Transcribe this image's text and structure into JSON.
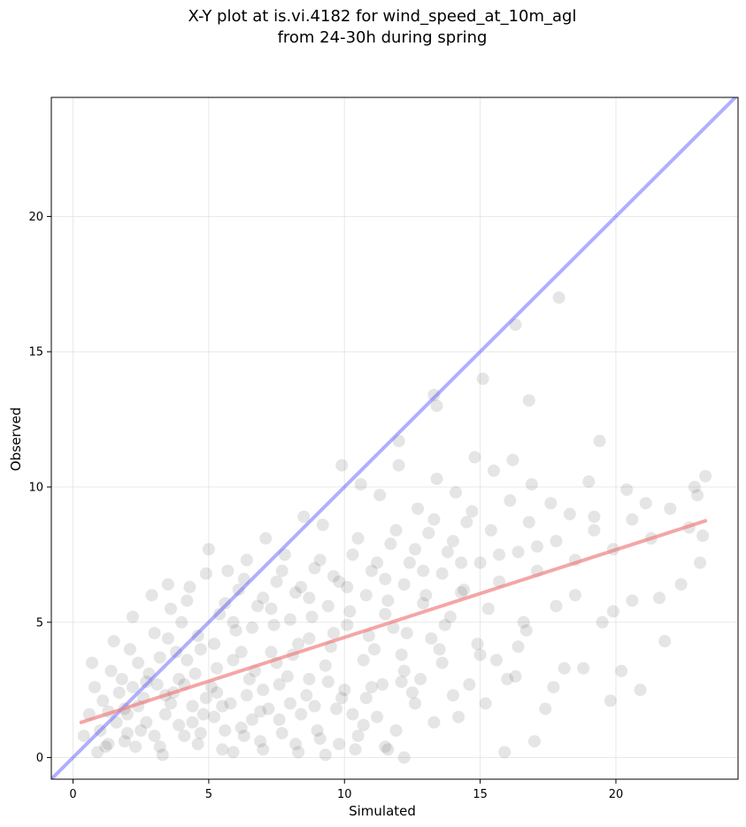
{
  "chart_data": {
    "type": "scatter",
    "title_line1": "X-Y plot at is.vi.4182 for wind_speed_at_10m_agl",
    "title_line2": "from 24-30h during spring",
    "xlabel": "Simulated",
    "ylabel": "Observed",
    "xlim": [
      -0.8,
      24.5
    ],
    "ylim": [
      -0.8,
      24.4
    ],
    "xticks": [
      0,
      5,
      10,
      15,
      20
    ],
    "yticks": [
      0,
      5,
      10,
      15,
      20
    ],
    "grid": true,
    "point_color": "#333333",
    "identity_line": {
      "color": "#4d4dff",
      "x": [
        -0.8,
        24.5
      ],
      "y": [
        -0.8,
        24.5
      ]
    },
    "fit_line": {
      "color": "#f08080",
      "x": [
        0.3,
        23.3
      ],
      "y": [
        1.3,
        8.75
      ]
    },
    "points": [
      [
        17.9,
        17.0
      ],
      [
        16.3,
        16.0
      ],
      [
        13.3,
        13.4
      ],
      [
        13.4,
        13.0
      ],
      [
        15.1,
        14.0
      ],
      [
        16.8,
        13.2
      ],
      [
        12.0,
        11.7
      ],
      [
        19.4,
        11.7
      ],
      [
        0.9,
        0.2
      ],
      [
        1.3,
        0.5
      ],
      [
        2.0,
        0.9
      ],
      [
        2.7,
        1.3
      ],
      [
        3.2,
        0.4
      ],
      [
        4.1,
        0.8
      ],
      [
        4.8,
        1.6
      ],
      [
        5.5,
        0.3
      ],
      [
        6.2,
        1.1
      ],
      [
        6.9,
        0.6
      ],
      [
        7.6,
        1.4
      ],
      [
        8.3,
        0.2
      ],
      [
        9.0,
        1.0
      ],
      [
        9.8,
        0.5
      ],
      [
        10.7,
        1.2
      ],
      [
        11.6,
        0.3
      ],
      [
        12.2,
        0.0
      ],
      [
        1.1,
        2.1
      ],
      [
        1.8,
        2.9
      ],
      [
        2.4,
        3.5
      ],
      [
        3.1,
        2.7
      ],
      [
        3.8,
        3.9
      ],
      [
        4.5,
        3.1
      ],
      [
        5.2,
        4.2
      ],
      [
        5.9,
        3.6
      ],
      [
        6.6,
        4.8
      ],
      [
        7.3,
        3.9
      ],
      [
        8.0,
        5.1
      ],
      [
        8.7,
        4.4
      ],
      [
        9.4,
        5.6
      ],
      [
        10.1,
        4.9
      ],
      [
        10.8,
        6.0
      ],
      [
        11.5,
        5.3
      ],
      [
        12.2,
        6.4
      ],
      [
        12.9,
        5.7
      ],
      [
        13.6,
        6.8
      ],
      [
        14.3,
        6.1
      ],
      [
        15.0,
        7.2
      ],
      [
        15.7,
        6.5
      ],
      [
        16.4,
        7.6
      ],
      [
        17.1,
        6.9
      ],
      [
        17.8,
        8.0
      ],
      [
        18.5,
        7.3
      ],
      [
        19.2,
        8.4
      ],
      [
        19.9,
        7.7
      ],
      [
        20.6,
        8.8
      ],
      [
        21.3,
        8.1
      ],
      [
        22.0,
        9.2
      ],
      [
        22.7,
        8.5
      ],
      [
        23.3,
        10.4
      ],
      [
        1.5,
        4.3
      ],
      [
        2.2,
        5.2
      ],
      [
        2.9,
        6.0
      ],
      [
        3.6,
        5.5
      ],
      [
        4.3,
        6.3
      ],
      [
        5.0,
        7.7
      ],
      [
        5.7,
        6.9
      ],
      [
        6.4,
        7.3
      ],
      [
        7.1,
        8.1
      ],
      [
        7.8,
        7.5
      ],
      [
        8.5,
        8.9
      ],
      [
        9.2,
        8.6
      ],
      [
        9.9,
        10.8
      ],
      [
        10.6,
        10.1
      ],
      [
        11.3,
        9.7
      ],
      [
        12.0,
        10.8
      ],
      [
        12.7,
        9.2
      ],
      [
        13.4,
        10.3
      ],
      [
        14.1,
        9.8
      ],
      [
        14.8,
        11.1
      ],
      [
        15.5,
        10.6
      ],
      [
        16.2,
        11.0
      ],
      [
        16.9,
        10.1
      ],
      [
        17.6,
        9.4
      ],
      [
        18.3,
        9.0
      ],
      [
        19.0,
        10.2
      ],
      [
        20.4,
        9.9
      ],
      [
        21.1,
        9.4
      ],
      [
        22.9,
        10.0
      ],
      [
        23.0,
        9.7
      ],
      [
        0.6,
        1.6
      ],
      [
        1.0,
        1.0
      ],
      [
        1.4,
        3.2
      ],
      [
        1.9,
        1.8
      ],
      [
        2.3,
        0.4
      ],
      [
        2.6,
        2.2
      ],
      [
        3.0,
        4.6
      ],
      [
        3.4,
        1.6
      ],
      [
        3.7,
        2.4
      ],
      [
        4.0,
        5.0
      ],
      [
        4.4,
        1.9
      ],
      [
        4.7,
        4.0
      ],
      [
        5.1,
        2.6
      ],
      [
        5.4,
        5.3
      ],
      [
        5.8,
        2.0
      ],
      [
        6.1,
        6.2
      ],
      [
        6.5,
        2.9
      ],
      [
        6.8,
        5.6
      ],
      [
        7.2,
        1.8
      ],
      [
        7.5,
        6.5
      ],
      [
        7.9,
        3.0
      ],
      [
        8.2,
        6.1
      ],
      [
        8.6,
        2.3
      ],
      [
        8.9,
        7.0
      ],
      [
        9.3,
        3.4
      ],
      [
        9.6,
        6.7
      ],
      [
        10.0,
        2.5
      ],
      [
        10.3,
        7.5
      ],
      [
        10.7,
        3.6
      ],
      [
        11.0,
        6.9
      ],
      [
        11.4,
        2.7
      ],
      [
        11.7,
        7.9
      ],
      [
        12.1,
        3.8
      ],
      [
        12.4,
        7.2
      ],
      [
        12.8,
        2.9
      ],
      [
        13.1,
        8.3
      ],
      [
        13.5,
        4.0
      ],
      [
        13.8,
        7.6
      ],
      [
        14.2,
        1.5
      ],
      [
        14.5,
        8.7
      ],
      [
        14.9,
        4.2
      ],
      [
        15.2,
        2.0
      ],
      [
        15.6,
        3.6
      ],
      [
        15.9,
        0.2
      ],
      [
        16.3,
        3.0
      ],
      [
        16.6,
        5.0
      ],
      [
        17.0,
        0.6
      ],
      [
        17.4,
        1.8
      ],
      [
        17.7,
        2.6
      ],
      [
        18.1,
        3.3
      ],
      [
        18.8,
        3.3
      ],
      [
        19.5,
        5.0
      ],
      [
        19.8,
        2.1
      ],
      [
        20.2,
        3.2
      ],
      [
        20.9,
        2.5
      ],
      [
        21.6,
        5.9
      ],
      [
        21.8,
        4.3
      ],
      [
        22.4,
        6.4
      ],
      [
        23.1,
        7.2
      ],
      [
        23.2,
        8.2
      ],
      [
        0.4,
        0.8
      ],
      [
        0.8,
        2.6
      ],
      [
        1.2,
        0.4
      ],
      [
        1.6,
        1.3
      ],
      [
        2.1,
        4.0
      ],
      [
        2.5,
        1.0
      ],
      [
        2.8,
        3.1
      ],
      [
        3.3,
        0.1
      ],
      [
        3.5,
        4.4
      ],
      [
        3.9,
        1.2
      ],
      [
        4.2,
        3.6
      ],
      [
        4.6,
        0.5
      ],
      [
        4.9,
        2.2
      ],
      [
        5.3,
        3.3
      ],
      [
        5.6,
        1.0
      ],
      [
        6.0,
        4.7
      ],
      [
        6.3,
        0.8
      ],
      [
        6.7,
        3.2
      ],
      [
        7.0,
        2.5
      ],
      [
        7.4,
        4.9
      ],
      [
        7.7,
        0.9
      ],
      [
        8.1,
        3.8
      ],
      [
        8.4,
        1.6
      ],
      [
        8.8,
        5.2
      ],
      [
        9.1,
        0.7
      ],
      [
        9.5,
        4.1
      ],
      [
        9.7,
        1.8
      ],
      [
        10.2,
        5.4
      ],
      [
        10.5,
        0.8
      ],
      [
        10.9,
        4.5
      ],
      [
        11.2,
        1.5
      ],
      [
        11.6,
        5.8
      ],
      [
        11.9,
        1.0
      ],
      [
        12.3,
        4.6
      ],
      [
        12.6,
        2.0
      ],
      [
        13.0,
        6.0
      ],
      [
        13.3,
        1.3
      ],
      [
        13.7,
        4.9
      ],
      [
        14.0,
        2.3
      ],
      [
        14.4,
        6.2
      ],
      [
        0.7,
        3.5
      ],
      [
        1.7,
        2.4
      ],
      [
        2.0,
        1.6
      ],
      [
        2.7,
        2.8
      ],
      [
        3.2,
        3.7
      ],
      [
        3.9,
        2.9
      ],
      [
        4.6,
        4.5
      ],
      [
        5.2,
        1.5
      ],
      [
        5.9,
        5.0
      ],
      [
        6.6,
        1.4
      ],
      [
        7.3,
        5.5
      ],
      [
        8.0,
        2.0
      ],
      [
        8.7,
        5.9
      ],
      [
        9.4,
        2.8
      ],
      [
        10.1,
        6.3
      ],
      [
        10.8,
        2.2
      ],
      [
        11.5,
        6.6
      ],
      [
        12.2,
        3.2
      ],
      [
        12.9,
        6.9
      ],
      [
        13.6,
        3.5
      ],
      [
        14.3,
        7.2
      ],
      [
        15.0,
        3.8
      ],
      [
        15.7,
        7.5
      ],
      [
        16.4,
        4.1
      ],
      [
        17.1,
        7.8
      ],
      [
        17.8,
        5.6
      ],
      [
        18.5,
        6.0
      ],
      [
        19.2,
        8.9
      ],
      [
        19.9,
        5.4
      ],
      [
        20.6,
        5.8
      ],
      [
        1.3,
        1.7
      ],
      [
        1.9,
        0.6
      ],
      [
        2.4,
        1.9
      ],
      [
        3.0,
        0.8
      ],
      [
        3.6,
        2.0
      ],
      [
        4.1,
        2.7
      ],
      [
        4.7,
        0.9
      ],
      [
        5.3,
        2.4
      ],
      [
        5.9,
        0.2
      ],
      [
        6.4,
        2.3
      ],
      [
        7.0,
        0.3
      ],
      [
        7.6,
        2.7
      ],
      [
        8.2,
        0.5
      ],
      [
        8.7,
        2.9
      ],
      [
        9.3,
        0.1
      ],
      [
        9.9,
        2.2
      ],
      [
        10.4,
        0.3
      ],
      [
        11.0,
        2.6
      ],
      [
        11.5,
        0.4
      ],
      [
        12.1,
        2.8
      ],
      [
        2.2,
        2.6
      ],
      [
        3.4,
        2.3
      ],
      [
        4.4,
        1.3
      ],
      [
        5.5,
        1.9
      ],
      [
        6.2,
        3.9
      ],
      [
        6.9,
        1.7
      ],
      [
        7.5,
        3.5
      ],
      [
        8.3,
        4.2
      ],
      [
        8.9,
        1.9
      ],
      [
        9.6,
        4.6
      ],
      [
        10.3,
        1.6
      ],
      [
        11.1,
        4.0
      ],
      [
        11.8,
        4.8
      ],
      [
        12.5,
        2.4
      ],
      [
        13.2,
        4.4
      ],
      [
        13.9,
        5.2
      ],
      [
        14.6,
        2.7
      ],
      [
        15.3,
        5.5
      ],
      [
        16.0,
        2.9
      ],
      [
        16.7,
        4.7
      ],
      [
        3.5,
        6.4
      ],
      [
        4.2,
        5.8
      ],
      [
        4.9,
        6.8
      ],
      [
        5.6,
        5.7
      ],
      [
        6.3,
        6.6
      ],
      [
        7.0,
        5.9
      ],
      [
        7.7,
        6.9
      ],
      [
        8.4,
        6.3
      ],
      [
        9.1,
        7.3
      ],
      [
        9.8,
        6.5
      ],
      [
        10.5,
        8.1
      ],
      [
        11.2,
        7.2
      ],
      [
        11.9,
        8.4
      ],
      [
        12.6,
        7.7
      ],
      [
        13.3,
        8.8
      ],
      [
        14.0,
        8.0
      ],
      [
        14.7,
        9.1
      ],
      [
        15.4,
        8.4
      ],
      [
        16.1,
        9.5
      ],
      [
        16.8,
        8.7
      ]
    ]
  }
}
